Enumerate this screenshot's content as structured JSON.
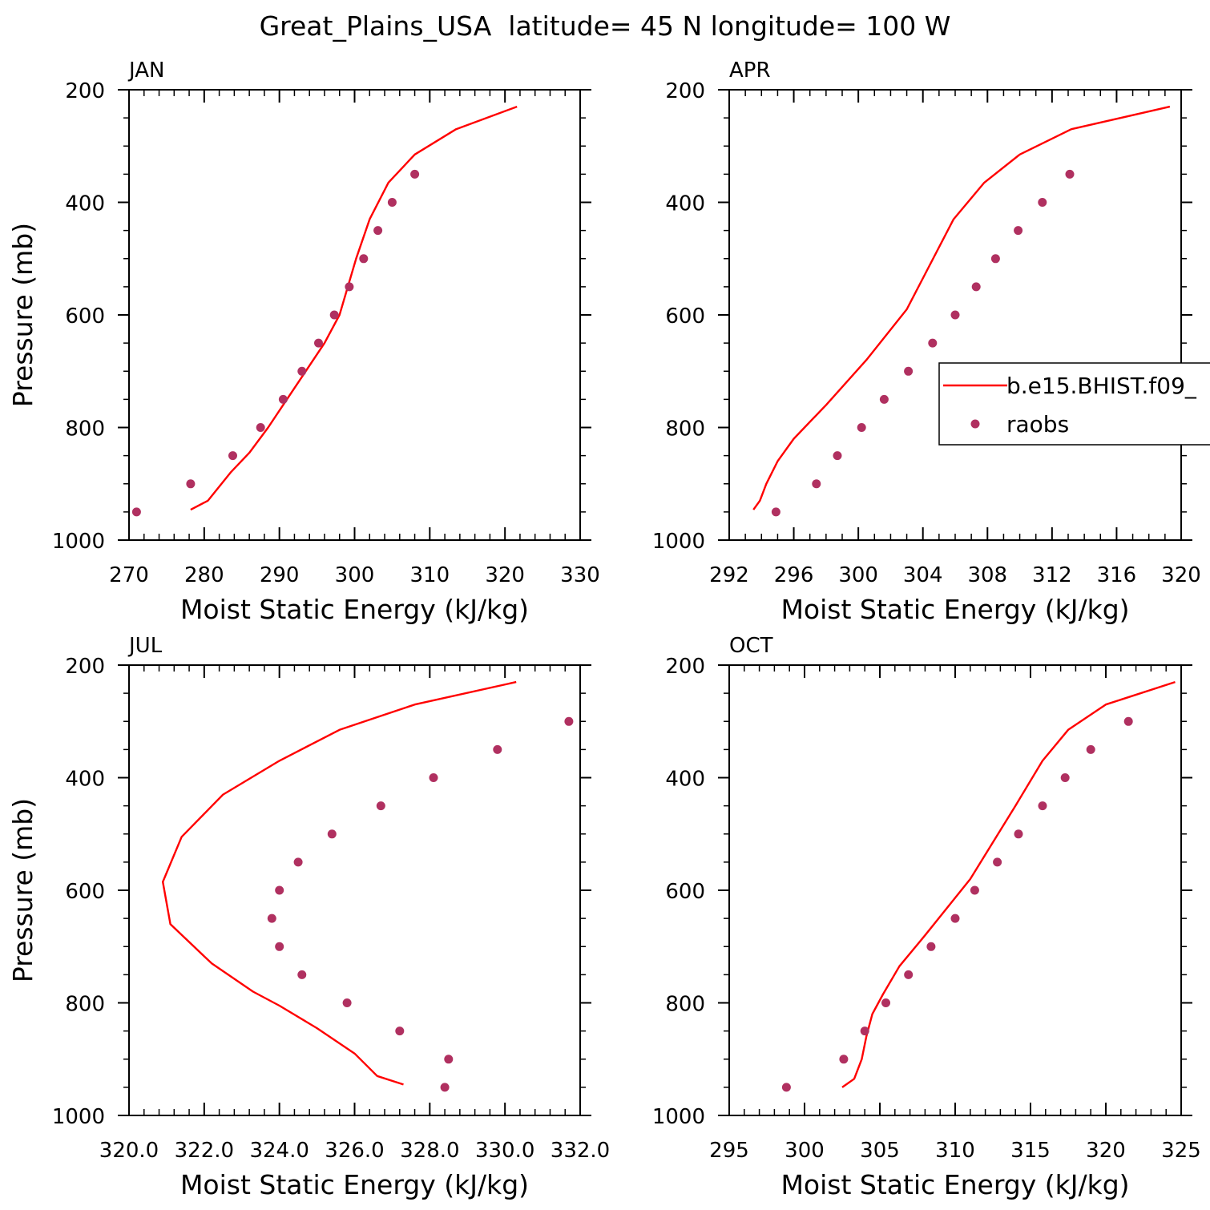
{
  "title": "Great_Plains_USA  latitude= 45 N longitude= 100 W",
  "legend": {
    "model_label": "b.e15.BHIST.f09_",
    "obs_label": "raobs",
    "model_color": "#ff0000",
    "obs_color": "#b03060"
  },
  "chart_data": [
    {
      "type": "line",
      "panel": "JAN",
      "title": "JAN",
      "xlabel": "Moist Static Energy (kJ/kg)",
      "ylabel": "Pressure (mb)",
      "xlim": [
        270,
        330
      ],
      "ylim": [
        1000,
        200
      ],
      "xticks": [
        270,
        280,
        290,
        300,
        310,
        320,
        330
      ],
      "xtick_labels": [
        "270",
        "280",
        "290",
        "300",
        "310",
        "320",
        "330"
      ],
      "yticks": [
        200,
        400,
        600,
        800,
        1000
      ],
      "ytick_labels": [
        "200",
        "400",
        "600",
        "800",
        "1000"
      ],
      "x_minor_step": 2,
      "series": [
        {
          "name": "b.e15.BHIST.f09_",
          "style": "line",
          "x": [
            278.2,
            280.5,
            283.5,
            286.0,
            288.5,
            291.0,
            293.5,
            296.0,
            298.0,
            300.2,
            302.0,
            304.5,
            308.0,
            313.5,
            321.6
          ],
          "y": [
            946,
            930,
            880,
            845,
            800,
            750,
            700,
            650,
            600,
            500,
            430,
            365,
            315,
            270,
            230
          ]
        },
        {
          "name": "raobs",
          "style": "markers",
          "x": [
            271.0,
            278.2,
            283.8,
            287.5,
            290.5,
            293.0,
            295.2,
            297.3,
            299.3,
            301.2,
            303.1,
            305.0,
            308.0
          ],
          "y": [
            950,
            900,
            850,
            800,
            750,
            700,
            650,
            600,
            550,
            500,
            450,
            400,
            350
          ]
        }
      ]
    },
    {
      "type": "line",
      "panel": "APR",
      "title": "APR",
      "xlabel": "Moist Static Energy (kJ/kg)",
      "ylabel": "",
      "xlim": [
        292,
        320
      ],
      "ylim": [
        1000,
        200
      ],
      "xticks": [
        292,
        296,
        300,
        304,
        308,
        312,
        316,
        320
      ],
      "xtick_labels": [
        "292",
        "296",
        "300",
        "304",
        "308",
        "312",
        "316",
        "320"
      ],
      "yticks": [
        200,
        400,
        600,
        800,
        1000
      ],
      "ytick_labels": [
        "200",
        "400",
        "600",
        "800",
        "1000"
      ],
      "x_minor_step": 1,
      "series": [
        {
          "name": "b.e15.BHIST.f09_",
          "style": "line",
          "x": [
            293.5,
            293.9,
            294.3,
            295.0,
            296.0,
            298.0,
            300.5,
            303.0,
            305.9,
            307.8,
            310.0,
            313.2,
            319.3
          ],
          "y": [
            946,
            930,
            900,
            860,
            820,
            760,
            680,
            590,
            430,
            365,
            315,
            270,
            230
          ]
        },
        {
          "name": "raobs",
          "style": "markers",
          "x": [
            294.9,
            297.4,
            298.7,
            300.2,
            301.6,
            303.1,
            304.6,
            306.0,
            307.3,
            308.5,
            309.9,
            311.4,
            313.1
          ],
          "y": [
            950,
            900,
            850,
            800,
            750,
            700,
            650,
            600,
            550,
            500,
            450,
            400,
            350
          ]
        }
      ]
    },
    {
      "type": "line",
      "panel": "JUL",
      "title": "JUL",
      "xlabel": "Moist Static Energy (kJ/kg)",
      "ylabel": "Pressure (mb)",
      "xlim": [
        320,
        332
      ],
      "ylim": [
        1000,
        200
      ],
      "xticks": [
        320,
        322,
        324,
        326,
        328,
        330,
        332
      ],
      "xtick_labels": [
        "320.0",
        "322.0",
        "324.0",
        "326.0",
        "328.0",
        "330.0",
        "332.0"
      ],
      "yticks": [
        200,
        400,
        600,
        800,
        1000
      ],
      "ytick_labels": [
        "200",
        "400",
        "600",
        "800",
        "1000"
      ],
      "x_minor_step": 0.4,
      "series": [
        {
          "name": "b.e15.BHIST.f09_",
          "style": "line",
          "x": [
            327.3,
            326.6,
            326.0,
            325.0,
            324.0,
            323.3,
            322.2,
            321.1,
            320.9,
            321.4,
            322.5,
            324.0,
            325.6,
            327.6,
            330.3
          ],
          "y": [
            945,
            930,
            890,
            845,
            805,
            780,
            730,
            660,
            585,
            505,
            430,
            370,
            315,
            270,
            230
          ]
        },
        {
          "name": "raobs",
          "style": "markers",
          "x": [
            328.4,
            328.5,
            327.2,
            325.8,
            324.6,
            324.0,
            323.8,
            324.0,
            324.5,
            325.4,
            326.7,
            328.1,
            329.8,
            331.7
          ],
          "y": [
            950,
            900,
            850,
            800,
            750,
            700,
            650,
            600,
            550,
            500,
            450,
            400,
            350,
            300
          ]
        }
      ]
    },
    {
      "type": "line",
      "panel": "OCT",
      "title": "OCT",
      "xlabel": "Moist Static Energy (kJ/kg)",
      "ylabel": "",
      "xlim": [
        295,
        325
      ],
      "ylim": [
        1000,
        200
      ],
      "xticks": [
        295,
        300,
        305,
        310,
        315,
        320,
        325
      ],
      "xtick_labels": [
        "295",
        "300",
        "305",
        "310",
        "315",
        "320",
        "325"
      ],
      "yticks": [
        200,
        400,
        600,
        800,
        1000
      ],
      "ytick_labels": [
        "200",
        "400",
        "600",
        "800",
        "1000"
      ],
      "x_minor_step": 1,
      "series": [
        {
          "name": "b.e15.BHIST.f09_",
          "style": "line",
          "x": [
            302.5,
            303.3,
            303.8,
            304.1,
            304.5,
            305.2,
            306.3,
            308.0,
            311.0,
            314.0,
            315.8,
            317.5,
            320.0,
            324.6
          ],
          "y": [
            950,
            935,
            900,
            860,
            820,
            785,
            735,
            680,
            580,
            450,
            370,
            315,
            270,
            230
          ]
        },
        {
          "name": "raobs",
          "style": "markers",
          "x": [
            298.8,
            302.6,
            304.0,
            305.4,
            306.9,
            308.4,
            310.0,
            311.3,
            312.8,
            314.2,
            315.8,
            317.3,
            319.0,
            321.5
          ],
          "y": [
            950,
            900,
            850,
            800,
            750,
            700,
            650,
            600,
            550,
            500,
            450,
            400,
            350,
            300
          ]
        }
      ]
    }
  ]
}
